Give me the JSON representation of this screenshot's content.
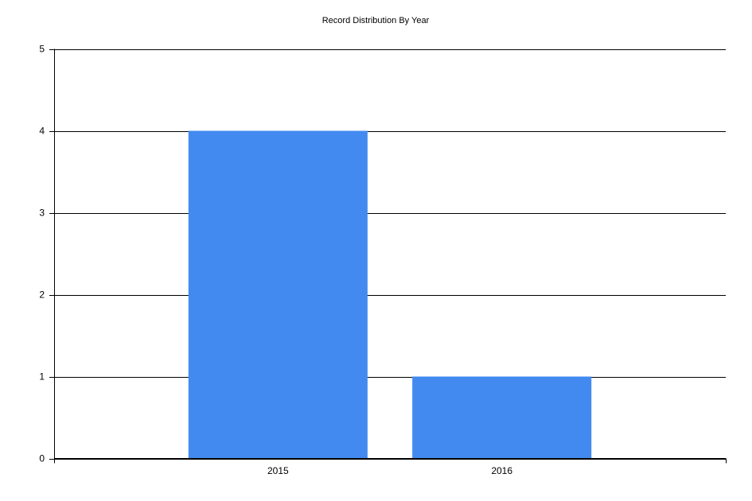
{
  "chart_data": {
    "type": "bar",
    "title": "Record Distribution By Year",
    "categories": [
      "2015",
      "2016"
    ],
    "values": [
      4,
      1
    ],
    "color": "#428af0",
    "ylim": [
      0,
      5
    ],
    "yticks": [
      0,
      1,
      2,
      3,
      4,
      5
    ],
    "grid": true
  }
}
